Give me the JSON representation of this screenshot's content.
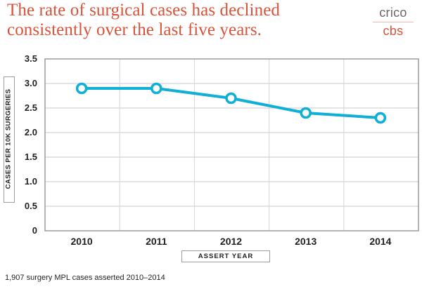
{
  "headline": {
    "line1": "The rate of surgical cases has declined",
    "line2": "consistently over the last five years."
  },
  "logo": {
    "top": "crico",
    "bottom": "cbs"
  },
  "colors": {
    "headline": "#d9533b",
    "series": "#0fafd6",
    "grid": "#c8c8c8",
    "axis": "#a09a96"
  },
  "footnote": "1,907 surgery MPL cases asserted 2010–2014",
  "chart_data": {
    "type": "line",
    "title": "The rate of surgical cases has declined consistently over the last five years.",
    "xlabel": "ASSERT YEAR",
    "ylabel": "CASES PER 10K SURGERIES",
    "categories": [
      "2010",
      "2011",
      "2012",
      "2013",
      "2014"
    ],
    "series": [
      {
        "name": "Cases per 10K surgeries",
        "values": [
          2.9,
          2.9,
          2.7,
          2.4,
          2.3
        ]
      }
    ],
    "ylim": [
      0,
      3.5
    ],
    "yticks": [
      0,
      0.5,
      1.0,
      1.5,
      2.0,
      2.5,
      3.0,
      3.5
    ],
    "ytick_labels": [
      "0",
      "0.5",
      "1.0",
      "1.5",
      "2.0",
      "2.5",
      "3.0",
      "3.5"
    ],
    "grid": true,
    "legend": "none",
    "marker": "open-circle"
  }
}
